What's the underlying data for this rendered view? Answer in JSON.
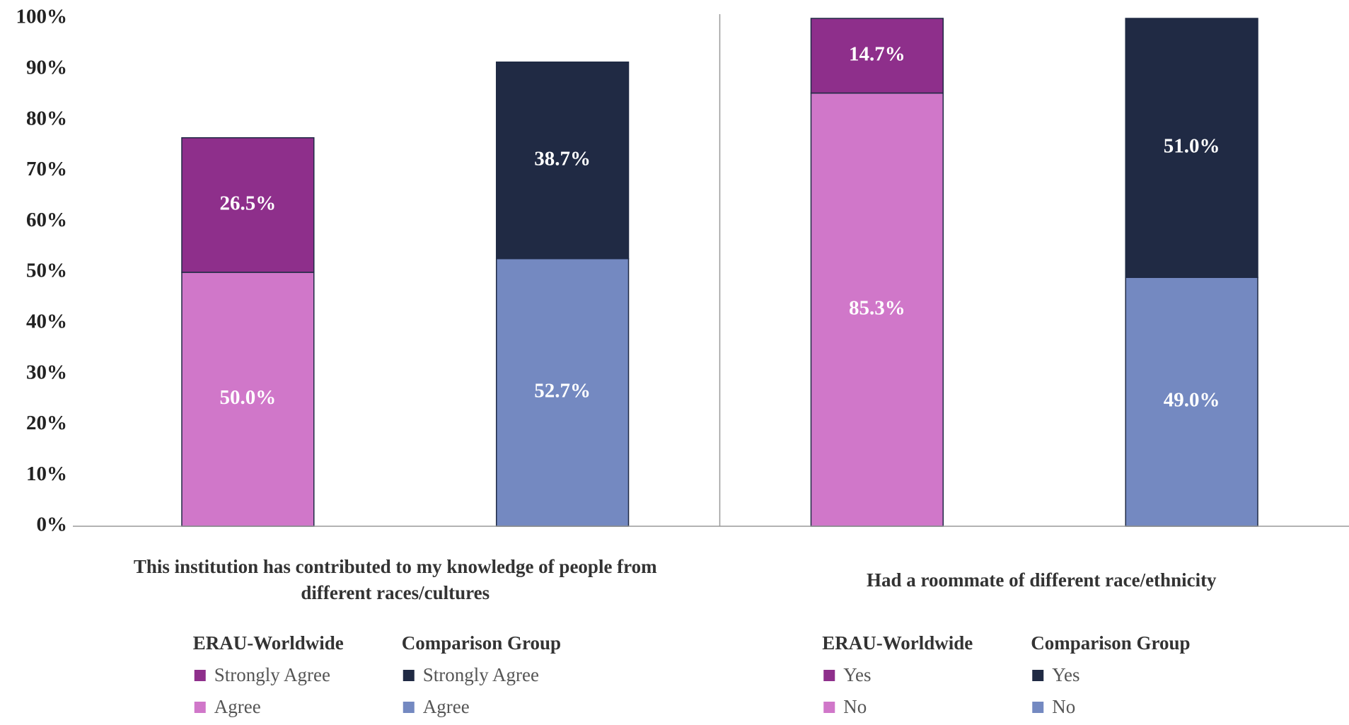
{
  "chart_data": {
    "type": "stacked_bar",
    "ylim": [
      0,
      100
    ],
    "yticks": [
      {
        "value": 0,
        "label": "0%"
      },
      {
        "value": 10,
        "label": "10%"
      },
      {
        "value": 20,
        "label": "20%"
      },
      {
        "value": 30,
        "label": "30%"
      },
      {
        "value": 40,
        "label": "40%"
      },
      {
        "value": 50,
        "label": "50%"
      },
      {
        "value": 60,
        "label": "60%"
      },
      {
        "value": 70,
        "label": "70%"
      },
      {
        "value": 80,
        "label": "80%"
      },
      {
        "value": 90,
        "label": "90%"
      },
      {
        "value": 100,
        "label": "100%"
      }
    ],
    "groups": [
      {
        "label": "This institution has contributed to my knowledge of people from different races/cultures",
        "series": [
          {
            "name": "ERAU-Worldwide",
            "segments": [
              {
                "name": "Agree",
                "color": "#d077c9",
                "value": 50.0,
                "value_label": "50.0%"
              },
              {
                "name": "Strongly Agree",
                "color": "#8e2f8b",
                "value": 26.5,
                "value_label": "26.5%"
              }
            ]
          },
          {
            "name": "Comparison Group",
            "segments": [
              {
                "name": "Agree",
                "color": "#7489c1",
                "value": 52.7,
                "value_label": "52.7%"
              },
              {
                "name": "Strongly Agree",
                "color": "#202a44",
                "value": 38.7,
                "value_label": "38.7%"
              }
            ]
          }
        ]
      },
      {
        "label": "Had a roommate of different race/ethnicity",
        "series": [
          {
            "name": "ERAU-Worldwide",
            "segments": [
              {
                "name": "No",
                "color": "#d077c9",
                "value": 85.3,
                "value_label": "85.3%"
              },
              {
                "name": "Yes",
                "color": "#8e2f8b",
                "value": 14.7,
                "value_label": "14.7%"
              }
            ]
          },
          {
            "name": "Comparison Group",
            "segments": [
              {
                "name": "No",
                "color": "#7489c1",
                "value": 49.0,
                "value_label": "49.0%"
              },
              {
                "name": "Yes",
                "color": "#202a44",
                "value": 51.0,
                "value_label": "51.0%"
              }
            ]
          }
        ]
      }
    ]
  }
}
